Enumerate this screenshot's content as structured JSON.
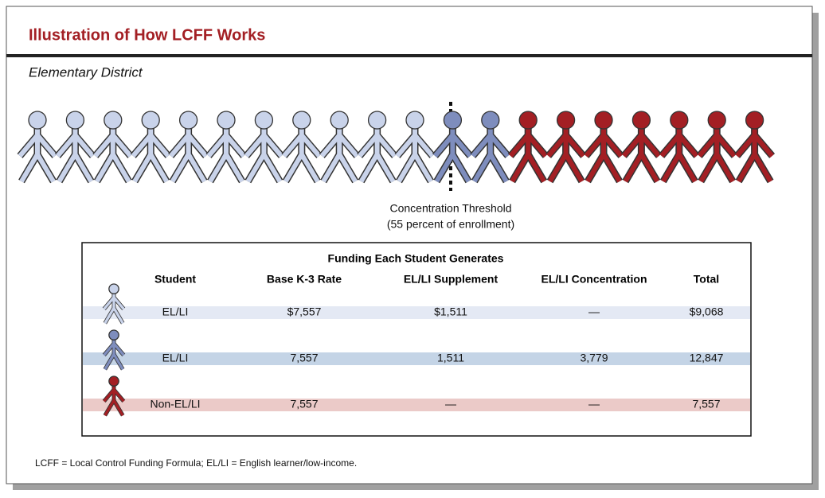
{
  "header": {
    "title": "Illustration of How LCFF Works",
    "subtitle": "Elementary District"
  },
  "threshold": {
    "line1": "Concentration Threshold",
    "line2": "(55 percent of enrollment)"
  },
  "table": {
    "caption": "Funding Each Student Generates",
    "columns": [
      "Student",
      "Base K-3 Rate",
      "EL/LI Supplement",
      "EL/LI Concentration",
      "Total"
    ],
    "rows": [
      [
        "EL/LI",
        "$7,557",
        "$1,511",
        "—",
        "$9,068"
      ],
      [
        "EL/LI",
        "7,557",
        "1,511",
        "3,779",
        "12,847"
      ],
      [
        "Non-EL/LI",
        "7,557",
        "—",
        "—",
        "7,557"
      ]
    ]
  },
  "footnote": "LCFF = Local Control Funding Formula; EL/LI = English learner/low-income."
}
